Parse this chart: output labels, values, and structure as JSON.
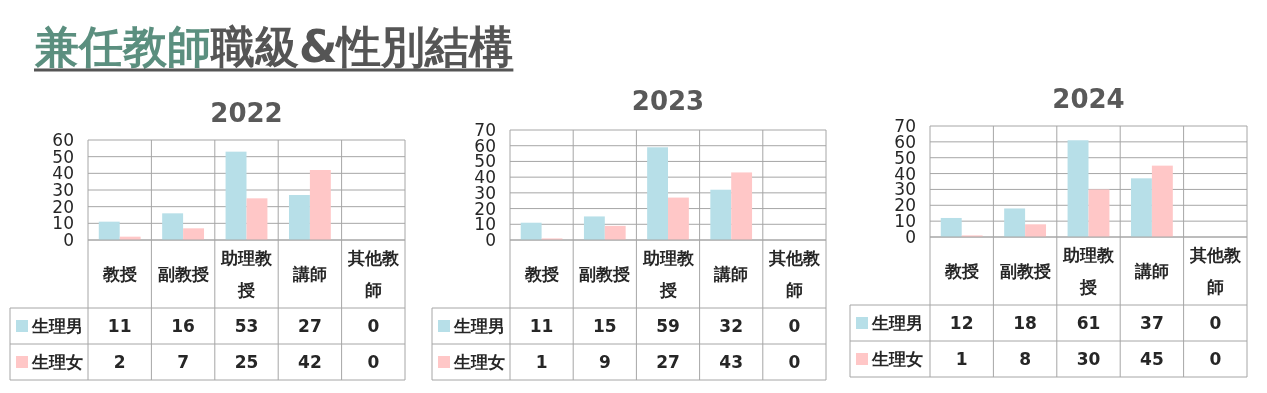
{
  "chart_data": [
    {
      "type": "other",
      "title": "兼任教師",
      "subtitle": "職級&性別結構"
    },
    {
      "type": "bar",
      "title": "2022",
      "categories": [
        "教授",
        "副教授",
        "助理教授",
        "講師",
        "其他教師"
      ],
      "ylim": [
        0,
        60
      ],
      "yticks": [
        0,
        10,
        20,
        30,
        40,
        50,
        60
      ],
      "grid": "y",
      "legend": "bottom left",
      "data_labels": true,
      "series": [
        {
          "name": "生理男",
          "color": "#b7dfe8",
          "values": [
            11,
            16,
            53,
            27,
            0
          ]
        },
        {
          "name": "生理女",
          "color": "#ffc7c7",
          "values": [
            2,
            7,
            25,
            42,
            0
          ]
        }
      ]
    },
    {
      "type": "bar",
      "title": "2023",
      "categories": [
        "教授",
        "副教授",
        "助理教授",
        "講師",
        "其他教師"
      ],
      "ylim": [
        0,
        70
      ],
      "yticks": [
        0,
        10,
        20,
        30,
        40,
        50,
        60,
        70
      ],
      "grid": "y",
      "legend": "bottom left",
      "data_labels": true,
      "series": [
        {
          "name": "生理男",
          "color": "#b7dfe8",
          "values": [
            11,
            15,
            59,
            32,
            0
          ]
        },
        {
          "name": "生理女",
          "color": "#ffc7c7",
          "values": [
            1,
            9,
            27,
            43,
            0
          ]
        }
      ]
    },
    {
      "type": "bar",
      "title": "2024",
      "categories": [
        "教授",
        "副教授",
        "助理教授",
        "講師",
        "其他教師"
      ],
      "ylim": [
        0,
        70
      ],
      "yticks": [
        0,
        10,
        20,
        30,
        40,
        50,
        60,
        70
      ],
      "grid": "y",
      "legend": "bottom left",
      "data_labels": true,
      "series": [
        {
          "name": "生理男",
          "color": "#b7dfe8",
          "values": [
            12,
            18,
            61,
            37,
            0
          ]
        },
        {
          "name": "生理女",
          "color": "#ffc7c7",
          "values": [
            1,
            8,
            30,
            45,
            0
          ]
        }
      ]
    }
  ]
}
